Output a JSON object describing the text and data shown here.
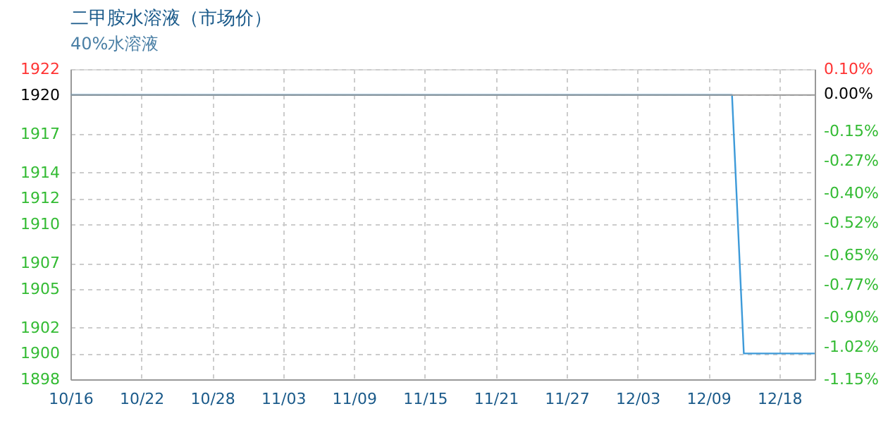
{
  "chart_data": {
    "type": "step",
    "title": "二甲胺水溶液（市场价）",
    "subtitle": "40%水溶液",
    "categories": [
      "10/16",
      null,
      null,
      null,
      null,
      null,
      "10/22",
      null,
      null,
      null,
      null,
      null,
      "10/28",
      null,
      null,
      null,
      null,
      null,
      "11/03",
      null,
      null,
      null,
      null,
      null,
      "11/09",
      null,
      null,
      null,
      null,
      null,
      "11/15",
      null,
      null,
      null,
      null,
      null,
      "11/21",
      null,
      null,
      null,
      null,
      null,
      "11/27",
      null,
      null,
      null,
      null,
      null,
      "12/03",
      null,
      null,
      null,
      null,
      null,
      "12/09",
      null,
      null,
      null,
      null,
      null,
      "12/18",
      null,
      null,
      null
    ],
    "series": [
      {
        "color": "#3d9ad9",
        "values": [
          1920,
          1920,
          1920,
          1920,
          1920,
          1920,
          1920,
          1920,
          1920,
          1920,
          1920,
          1920,
          1920,
          1920,
          1920,
          1920,
          1920,
          1920,
          1920,
          1920,
          1920,
          1920,
          1920,
          1920,
          1920,
          1920,
          1920,
          1920,
          1920,
          1920,
          1920,
          1920,
          1920,
          1920,
          1920,
          1920,
          1920,
          1920,
          1920,
          1920,
          1920,
          1920,
          1920,
          1920,
          1920,
          1920,
          1920,
          1920,
          1920,
          1920,
          1920,
          1920,
          1920,
          1920,
          1920,
          1920,
          1920,
          1900,
          1900,
          1900,
          1900,
          1900,
          1900,
          1900
        ]
      }
    ],
    "ylim": [
      1898,
      1922
    ],
    "yticks": [
      1922,
      1920,
      1917,
      1914,
      1912,
      1910,
      1907,
      1905,
      1902,
      1900,
      1898
    ],
    "y2lim": [
      -1.15,
      0.1
    ],
    "y2ticks": [
      {
        "value": 0.1,
        "label": "0.10%"
      },
      {
        "value": 0,
        "label": "0.00%"
      },
      {
        "value": -0.15,
        "label": "-0.15%"
      },
      {
        "value": -0.27,
        "label": "-0.27%"
      },
      {
        "value": -0.4,
        "label": "-0.40%"
      },
      {
        "value": -0.52,
        "label": "-0.52%"
      },
      {
        "value": -0.65,
        "label": "-0.65%"
      },
      {
        "value": -0.77,
        "label": "-0.77%"
      },
      {
        "value": -0.9,
        "label": "-0.90%"
      },
      {
        "value": -1.02,
        "label": "-1.02%"
      },
      {
        "value": -1.15,
        "label": "-1.15%"
      }
    ],
    "ref_lines": [
      {
        "axis": "y",
        "value": 1920,
        "color": "#999999",
        "line_style": "solid"
      }
    ],
    "grid": true,
    "line_style": "solid",
    "marker": "none"
  }
}
